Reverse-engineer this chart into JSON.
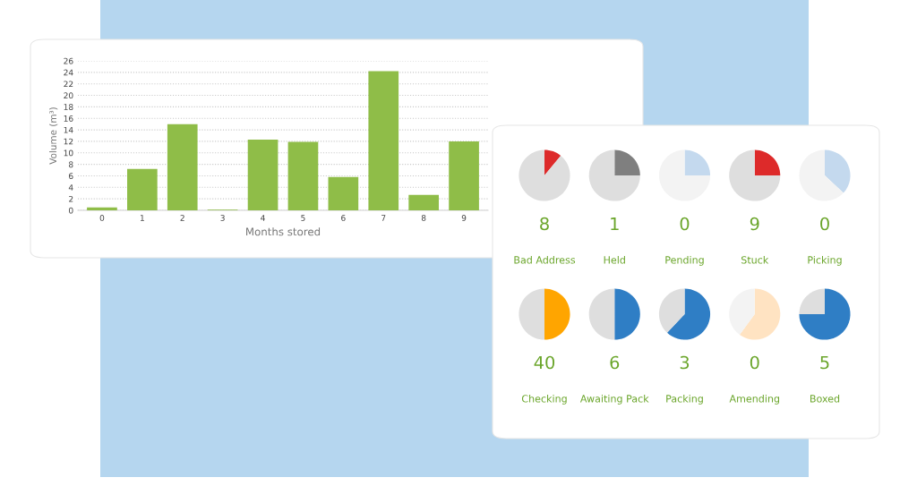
{
  "chart_data": [
    {
      "type": "bar",
      "xlabel": "Months stored",
      "ylabel": "Volume (m³)",
      "categories": [
        "0",
        "1",
        "2",
        "3",
        "4",
        "5",
        "6",
        "7",
        "8",
        "9"
      ],
      "values": [
        0.5,
        7.2,
        15,
        0.1,
        12.3,
        11.9,
        5.8,
        24.2,
        2.7,
        12
      ],
      "color": "#8fbd48",
      "ylim": [
        0,
        26
      ],
      "yticks": [
        0,
        2,
        4,
        6,
        8,
        10,
        12,
        14,
        16,
        18,
        20,
        22,
        24,
        26
      ],
      "grid": "y"
    },
    {
      "type": "pie",
      "title": "Bad Address",
      "annotations": [
        "8"
      ],
      "categories": [
        null,
        null
      ],
      "values": [
        11,
        89
      ],
      "colors": [
        "#dd2a2a",
        "#dedede"
      ]
    },
    {
      "type": "pie",
      "title": "Held",
      "annotations": [
        "1"
      ],
      "categories": [
        null,
        null
      ],
      "values": [
        25,
        75
      ],
      "colors": [
        "#7f7f7f",
        "#dedede"
      ]
    },
    {
      "type": "pie",
      "title": "Pending",
      "annotations": [
        "0"
      ],
      "categories": [
        null,
        null
      ],
      "values": [
        25,
        75
      ],
      "colors": [
        "#c4d9ee",
        "#f3f3f3"
      ]
    },
    {
      "type": "pie",
      "title": "Stuck",
      "annotations": [
        "9"
      ],
      "categories": [
        null,
        null
      ],
      "values": [
        25,
        75
      ],
      "colors": [
        "#dd2a2a",
        "#dedede"
      ]
    },
    {
      "type": "pie",
      "title": "Picking",
      "annotations": [
        "0"
      ],
      "categories": [
        null,
        null
      ],
      "values": [
        37,
        63
      ],
      "colors": [
        "#c4d9ee",
        "#f3f3f3"
      ]
    },
    {
      "type": "pie",
      "title": "Checking",
      "annotations": [
        "40"
      ],
      "categories": [
        null,
        null
      ],
      "values": [
        50,
        50
      ],
      "colors": [
        "#ffa500",
        "#dedede"
      ]
    },
    {
      "type": "pie",
      "title": "Awaiting Pack",
      "annotations": [
        "6"
      ],
      "categories": [
        null,
        null
      ],
      "values": [
        50,
        50
      ],
      "colors": [
        "#2f7ec5",
        "#dedede"
      ]
    },
    {
      "type": "pie",
      "title": "Packing",
      "annotations": [
        "3"
      ],
      "categories": [
        null,
        null
      ],
      "values": [
        62,
        38
      ],
      "colors": [
        "#2f7ec5",
        "#dedede"
      ]
    },
    {
      "type": "pie",
      "title": "Amending",
      "annotations": [
        "0"
      ],
      "categories": [
        null,
        null
      ],
      "values": [
        60,
        40
      ],
      "colors": [
        "#ffe3c2",
        "#f3f3f3"
      ]
    },
    {
      "type": "pie",
      "title": "Boxed",
      "annotations": [
        "5"
      ],
      "categories": [
        null,
        null
      ],
      "values": [
        75,
        25
      ],
      "colors": [
        "#2f7ec5",
        "#dedede"
      ]
    }
  ]
}
